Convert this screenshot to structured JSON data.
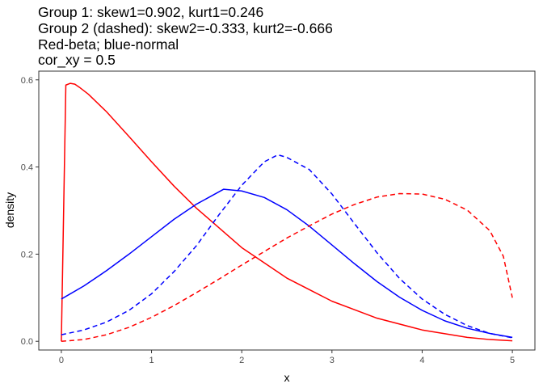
{
  "chart_data": {
    "type": "line",
    "title_lines": [
      "Group 1: skew1=0.902, kurt1=0.246",
      "Group 2 (dashed): skew2=-0.333, kurt2=-0.666",
      "Red-beta; blue-normal",
      "cor_xy = 0.5"
    ],
    "xlabel": "x",
    "ylabel": "density",
    "xlim": [
      -0.25,
      5.25
    ],
    "ylim": [
      -0.02,
      0.62
    ],
    "x_ticks": [
      0,
      1,
      2,
      3,
      4,
      5
    ],
    "x_tick_labels": [
      "0",
      "1",
      "2",
      "3",
      "4",
      "5"
    ],
    "y_ticks": [
      0.0,
      0.2,
      0.4,
      0.6
    ],
    "y_tick_labels": [
      "0.0",
      "0.2",
      "0.4",
      "0.6"
    ],
    "grid": false,
    "legend": "none",
    "series": [
      {
        "color": "#ff0000",
        "dash": "solid",
        "x": [
          0,
          0.05,
          0.1,
          0.15,
          0.2,
          0.3,
          0.5,
          0.75,
          1.0,
          1.25,
          1.5,
          2.0,
          2.5,
          3.0,
          3.5,
          4.0,
          4.5,
          4.75,
          5.0
        ],
        "y": [
          0.0,
          0.588,
          0.592,
          0.59,
          0.583,
          0.567,
          0.527,
          0.47,
          0.412,
          0.356,
          0.305,
          0.215,
          0.145,
          0.092,
          0.053,
          0.026,
          0.009,
          0.004,
          0.001
        ]
      },
      {
        "color": "#0000ff",
        "dash": "solid",
        "x": [
          0,
          0.25,
          0.5,
          0.75,
          1.0,
          1.25,
          1.5,
          1.8,
          2.0,
          2.25,
          2.5,
          2.75,
          3.0,
          3.25,
          3.5,
          3.75,
          4.0,
          4.25,
          4.5,
          4.75,
          5.0
        ],
        "y": [
          0.097,
          0.127,
          0.162,
          0.2,
          0.24,
          0.28,
          0.315,
          0.349,
          0.345,
          0.33,
          0.302,
          0.264,
          0.221,
          0.178,
          0.137,
          0.101,
          0.071,
          0.047,
          0.03,
          0.018,
          0.009
        ]
      },
      {
        "color": "#0000ff",
        "dash": "dashed",
        "x": [
          0,
          0.25,
          0.5,
          0.75,
          1.0,
          1.25,
          1.5,
          1.75,
          2.0,
          2.25,
          2.4,
          2.5,
          2.75,
          3.0,
          3.25,
          3.5,
          3.75,
          4.0,
          4.25,
          4.5,
          4.75,
          5.0
        ],
        "y": [
          0.015,
          0.026,
          0.044,
          0.071,
          0.109,
          0.16,
          0.22,
          0.291,
          0.358,
          0.412,
          0.428,
          0.422,
          0.394,
          0.338,
          0.27,
          0.203,
          0.144,
          0.097,
          0.062,
          0.036,
          0.018,
          0.008
        ]
      },
      {
        "color": "#ff0000",
        "dash": "dashed",
        "x": [
          0,
          0.25,
          0.5,
          0.75,
          1.0,
          1.25,
          1.5,
          1.75,
          2.0,
          2.25,
          2.5,
          2.75,
          3.0,
          3.25,
          3.5,
          3.75,
          4.0,
          4.25,
          4.5,
          4.75,
          4.9,
          5.0
        ],
        "y": [
          0.0,
          0.004,
          0.015,
          0.032,
          0.055,
          0.082,
          0.112,
          0.143,
          0.175,
          0.206,
          0.237,
          0.265,
          0.292,
          0.314,
          0.331,
          0.339,
          0.338,
          0.326,
          0.301,
          0.254,
          0.195,
          0.1
        ]
      }
    ]
  }
}
